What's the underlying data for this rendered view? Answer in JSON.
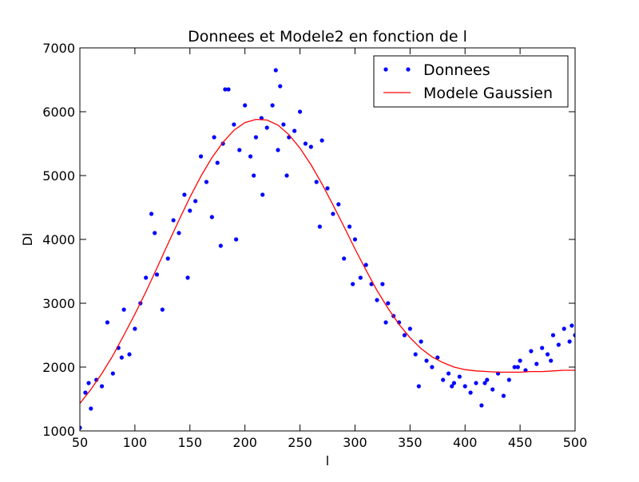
{
  "chart_data": {
    "type": "line",
    "title": "Donnees et Modele2 en fonction de l",
    "x_label": "l",
    "y_label": "Dl",
    "xlim": [
      50,
      500
    ],
    "xticks": [
      50,
      100,
      150,
      200,
      250,
      300,
      350,
      400,
      450,
      500
    ],
    "ylim": [
      1000,
      7000
    ],
    "yticks": [
      1000,
      2000,
      3000,
      4000,
      5000,
      6000,
      7000
    ],
    "legend": "upper right",
    "grid": false,
    "series": [
      {
        "name": "Donnees",
        "color": "#0000ff",
        "mode": "markers",
        "x": [
          50,
          55,
          60,
          65,
          70,
          75,
          80,
          85,
          90,
          95,
          100,
          105,
          110,
          115,
          120,
          125,
          130,
          135,
          140,
          145,
          150,
          155,
          160,
          165,
          170,
          175,
          180,
          185,
          190,
          195,
          200,
          205,
          210,
          215,
          220,
          225,
          230,
          235,
          240,
          245,
          250,
          255,
          260,
          265,
          270,
          275,
          280,
          285,
          290,
          295,
          300,
          305,
          310,
          315,
          320,
          325,
          330,
          335,
          340,
          345,
          350,
          355,
          360,
          365,
          370,
          375,
          380,
          385,
          390,
          395,
          400,
          405,
          410,
          415,
          420,
          425,
          430,
          435,
          440,
          445,
          450,
          455,
          460,
          465,
          470,
          475,
          480,
          485,
          490,
          495,
          500,
          182,
          228,
          232,
          216,
          192,
          172,
          58,
          88,
          118,
          148,
          178,
          208,
          238,
          268,
          298,
          328,
          358,
          388,
          418,
          448,
          478,
          497
        ],
        "values": [
          1050,
          1600,
          1350,
          1800,
          1700,
          2700,
          1900,
          2300,
          2900,
          2200,
          2600,
          3000,
          3400,
          4400,
          3450,
          2900,
          3700,
          4300,
          4100,
          4700,
          4450,
          4600,
          5300,
          4900,
          4350,
          5200,
          5500,
          6350,
          5800,
          5400,
          6100,
          5300,
          5600,
          5900,
          5750,
          6100,
          5400,
          5800,
          5600,
          5700,
          6000,
          5500,
          5450,
          4900,
          5550,
          4800,
          4400,
          4550,
          3700,
          4200,
          4000,
          3400,
          3600,
          3300,
          3050,
          3300,
          3000,
          2800,
          2700,
          2500,
          2600,
          2200,
          2400,
          2100,
          2000,
          2150,
          1800,
          1900,
          1750,
          1850,
          1700,
          1600,
          1750,
          1400,
          1800,
          1650,
          1900,
          1550,
          1800,
          2000,
          2100,
          1950,
          2250,
          2050,
          2300,
          2200,
          2500,
          2350,
          2600,
          2400,
          2500,
          6350,
          6650,
          6400,
          4700,
          4000,
          5600,
          1750,
          2150,
          4100,
          3400,
          3900,
          5000,
          5000,
          4200,
          3300,
          2700,
          1700,
          1700,
          1750,
          2000,
          2100,
          2650
        ]
      },
      {
        "name": "Modele Gaussien",
        "color": "#ff0000",
        "mode": "lines",
        "x": [
          50,
          60,
          70,
          80,
          90,
          100,
          110,
          120,
          130,
          140,
          150,
          160,
          170,
          180,
          190,
          200,
          210,
          220,
          230,
          240,
          250,
          260,
          270,
          280,
          290,
          300,
          310,
          320,
          330,
          340,
          350,
          360,
          370,
          380,
          390,
          400,
          410,
          420,
          430,
          440,
          450,
          460,
          470,
          480,
          490,
          500
        ],
        "values": [
          1430,
          1650,
          1900,
          2180,
          2500,
          2830,
          3180,
          3550,
          3930,
          4300,
          4660,
          4990,
          5280,
          5520,
          5710,
          5830,
          5880,
          5870,
          5790,
          5640,
          5430,
          5170,
          4870,
          4540,
          4200,
          3850,
          3520,
          3200,
          2920,
          2670,
          2460,
          2290,
          2160,
          2070,
          2000,
          1960,
          1940,
          1930,
          1920,
          1920,
          1920,
          1930,
          1930,
          1940,
          1950,
          1950
        ]
      }
    ]
  }
}
